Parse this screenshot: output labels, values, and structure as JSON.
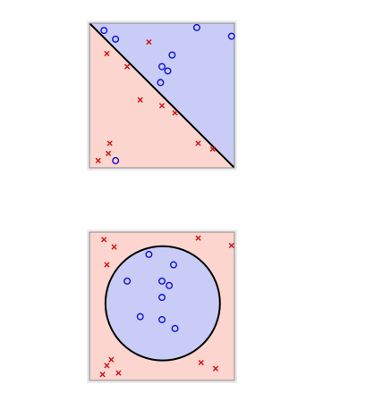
{
  "colors": {
    "class_circle": "#1010d0",
    "class_cross": "#d01010",
    "region_circle": "#c8ccf7",
    "region_cross": "#fbd5ce",
    "boundary": "#000000"
  },
  "chart_data": [
    {
      "type": "scatter",
      "boundary": "linear",
      "xlim": [
        0,
        1
      ],
      "ylim": [
        0,
        1
      ],
      "grid": false,
      "legend": "none",
      "series": [
        {
          "marker": "circle",
          "points": [
            [
              0.1,
              0.95
            ],
            [
              0.18,
              0.89
            ],
            [
              0.74,
              0.97
            ],
            [
              0.98,
              0.91
            ],
            [
              0.57,
              0.78
            ],
            [
              0.5,
              0.7
            ],
            [
              0.54,
              0.67
            ],
            [
              0.49,
              0.59
            ],
            [
              0.18,
              0.05
            ]
          ]
        },
        {
          "marker": "cross",
          "points": [
            [
              0.12,
              0.79
            ],
            [
              0.41,
              0.87
            ],
            [
              0.26,
              0.7
            ],
            [
              0.35,
              0.47
            ],
            [
              0.5,
              0.43
            ],
            [
              0.59,
              0.38
            ],
            [
              0.14,
              0.17
            ],
            [
              0.13,
              0.1
            ],
            [
              0.06,
              0.05
            ],
            [
              0.75,
              0.17
            ],
            [
              0.85,
              0.13
            ]
          ]
        }
      ]
    },
    {
      "type": "scatter",
      "boundary": "circular",
      "xlim": [
        0,
        1
      ],
      "ylim": [
        0,
        1
      ],
      "grid": false,
      "legend": "none",
      "series": [
        {
          "marker": "circle",
          "points": [
            [
              0.41,
              0.85
            ],
            [
              0.58,
              0.78
            ],
            [
              0.26,
              0.67
            ],
            [
              0.5,
              0.67
            ],
            [
              0.55,
              0.64
            ],
            [
              0.5,
              0.56
            ],
            [
              0.35,
              0.43
            ],
            [
              0.5,
              0.41
            ],
            [
              0.59,
              0.35
            ]
          ]
        },
        {
          "marker": "cross",
          "points": [
            [
              0.1,
              0.95
            ],
            [
              0.17,
              0.9
            ],
            [
              0.75,
              0.96
            ],
            [
              0.98,
              0.91
            ],
            [
              0.12,
              0.78
            ],
            [
              0.15,
              0.14
            ],
            [
              0.12,
              0.1
            ],
            [
              0.09,
              0.04
            ],
            [
              0.2,
              0.05
            ],
            [
              0.77,
              0.12
            ],
            [
              0.87,
              0.08
            ]
          ]
        }
      ]
    }
  ]
}
